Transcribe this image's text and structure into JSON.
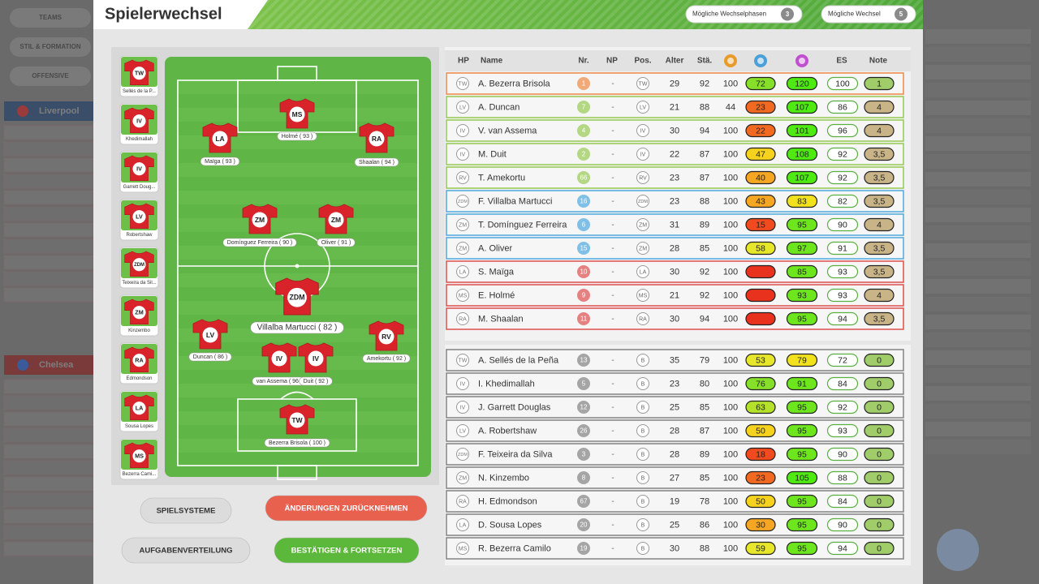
{
  "background": {
    "menu": [
      "TEAMS",
      "STIL & FORMATION",
      "OFFENSIVE"
    ],
    "teams": [
      "Liverpool",
      "Chelsea"
    ]
  },
  "header": {
    "title": "Spielerwechsel",
    "counters": [
      {
        "label": "Mögliche Wechselphasen",
        "value": 3
      },
      {
        "label": "Mögliche Wechsel",
        "value": 5
      }
    ]
  },
  "bench_cards": [
    {
      "pos": "TW",
      "name": "Sellés de la P..."
    },
    {
      "pos": "IV",
      "name": "Khedimallah"
    },
    {
      "pos": "IV",
      "name": "Garrett Doug..."
    },
    {
      "pos": "LV",
      "name": "Robertshaw"
    },
    {
      "pos": "ZDM",
      "name": "Teixeira da Sil..."
    },
    {
      "pos": "ZM",
      "name": "Kinzembo"
    },
    {
      "pos": "RA",
      "name": "Edmondson"
    },
    {
      "pos": "LA",
      "name": "Sousa Lopes"
    },
    {
      "pos": "MS",
      "name": "Bezerra Cami..."
    }
  ],
  "pitch": [
    {
      "pos": "MS",
      "label": "Holmé ( 93 )"
    },
    {
      "pos": "LA",
      "label": "Maïga ( 93 )"
    },
    {
      "pos": "RA",
      "label": "Shaalan ( 94 )"
    },
    {
      "pos": "ZM",
      "label": "Domínguez Ferreira ( 90 )"
    },
    {
      "pos": "ZM",
      "label": "Oliver ( 91 )"
    },
    {
      "pos": "ZDM",
      "label": "Villalba Martucci ( 82 )"
    },
    {
      "pos": "LV",
      "label": "Duncan ( 86 )"
    },
    {
      "pos": "IV",
      "label": "van Assema ( 96 )"
    },
    {
      "pos": "IV",
      "label": "Duit ( 92 )"
    },
    {
      "pos": "RV",
      "label": "Amekortu ( 92 )"
    },
    {
      "pos": "TW",
      "label": "Bezerra Brisola ( 100 )"
    }
  ],
  "buttons": [
    "SPIELSYSTEME",
    "ÄNDERUNGEN ZURÜCKNEHMEN",
    "AUFGABENVERTEILUNG",
    "BESTÄTIGEN & FORTSETZEN"
  ],
  "table": {
    "columns": [
      "HP",
      "Name",
      "Nr.",
      "NP",
      "Pos.",
      "Alter",
      "Stä.",
      "ES",
      "Note"
    ],
    "starters": [
      {
        "hp": "TW",
        "name": "A. Bezerra Brisola",
        "nr": 1,
        "np": "-",
        "pos": "TW",
        "age": 29,
        "sta": 92,
        "cond": 100,
        "fit": 72,
        "mor": 120,
        "es": 100,
        "note": "1",
        "color": "#ee9050"
      },
      {
        "hp": "LV",
        "name": "A. Duncan",
        "nr": 7,
        "np": "-",
        "pos": "LV",
        "age": 21,
        "sta": 88,
        "cond": 44,
        "fit": 23,
        "mor": 107,
        "es": 86,
        "note": "4",
        "color": "#9ccc5c"
      },
      {
        "hp": "IV",
        "name": "V. van Assema",
        "nr": 4,
        "np": "-",
        "pos": "IV",
        "age": 30,
        "sta": 94,
        "cond": 100,
        "fit": 22,
        "mor": 101,
        "es": 96,
        "note": "4",
        "color": "#9ccc5c"
      },
      {
        "hp": "IV",
        "name": "M. Duit",
        "nr": 2,
        "np": "-",
        "pos": "IV",
        "age": 22,
        "sta": 87,
        "cond": 100,
        "fit": 47,
        "mor": 108,
        "es": 92,
        "note": "3,5",
        "color": "#9ccc5c"
      },
      {
        "hp": "RV",
        "name": "T. Amekortu",
        "nr": 66,
        "np": "-",
        "pos": "RV",
        "age": 23,
        "sta": 87,
        "cond": 100,
        "fit": 40,
        "mor": 107,
        "es": 92,
        "note": "3,5",
        "color": "#9ccc5c"
      },
      {
        "hp": "ZDM",
        "name": "F. Villalba Martucci",
        "nr": 16,
        "np": "-",
        "pos": "ZDM",
        "age": 23,
        "sta": 88,
        "cond": 100,
        "fit": 43,
        "mor": 83,
        "es": 82,
        "note": "3,5",
        "color": "#5aaee0"
      },
      {
        "hp": "ZM",
        "name": "T. Domínguez Ferreira",
        "nr": 6,
        "np": "-",
        "pos": "ZM",
        "age": 31,
        "sta": 89,
        "cond": 100,
        "fit": 15,
        "mor": 95,
        "es": 90,
        "note": "4",
        "color": "#5aaee0"
      },
      {
        "hp": "ZM",
        "name": "A. Oliver",
        "nr": 15,
        "np": "-",
        "pos": "ZM",
        "age": 28,
        "sta": 85,
        "cond": 100,
        "fit": 58,
        "mor": 97,
        "es": 91,
        "note": "3,5",
        "color": "#5aaee0"
      },
      {
        "hp": "LA",
        "name": "S. Maïga",
        "nr": 10,
        "np": "-",
        "pos": "LA",
        "age": 30,
        "sta": 92,
        "cond": 100,
        "fit": null,
        "mor": 85,
        "es": 93,
        "note": "3,5",
        "color": "#e05a5a"
      },
      {
        "hp": "MS",
        "name": "E. Holmé",
        "nr": 9,
        "np": "-",
        "pos": "MS",
        "age": 21,
        "sta": 92,
        "cond": 100,
        "fit": null,
        "mor": 93,
        "es": 93,
        "note": "4",
        "color": "#e05a5a"
      },
      {
        "hp": "RA",
        "name": "M. Shaalan",
        "nr": 11,
        "np": "-",
        "pos": "RA",
        "age": 30,
        "sta": 94,
        "cond": 100,
        "fit": null,
        "mor": 95,
        "es": 94,
        "note": "3,5",
        "color": "#e05a5a"
      }
    ],
    "bench": [
      {
        "hp": "TW",
        "name": "A. Sellés de la Peña",
        "nr": 13,
        "np": "-",
        "pos": "B",
        "age": 35,
        "sta": 79,
        "cond": 100,
        "fit": 53,
        "mor": 79,
        "es": 72,
        "note": "0",
        "color": "#8a8a8a"
      },
      {
        "hp": "IV",
        "name": "I. Khedimallah",
        "nr": 5,
        "np": "-",
        "pos": "B",
        "age": 23,
        "sta": 80,
        "cond": 100,
        "fit": 76,
        "mor": 91,
        "es": 84,
        "note": "0",
        "color": "#8a8a8a"
      },
      {
        "hp": "IV",
        "name": "J. Garrett Douglas",
        "nr": 12,
        "np": "-",
        "pos": "B",
        "age": 25,
        "sta": 85,
        "cond": 100,
        "fit": 63,
        "mor": 95,
        "es": 92,
        "note": "0",
        "color": "#8a8a8a"
      },
      {
        "hp": "LV",
        "name": "A. Robertshaw",
        "nr": 26,
        "np": "-",
        "pos": "B",
        "age": 28,
        "sta": 87,
        "cond": 100,
        "fit": 50,
        "mor": 95,
        "es": 93,
        "note": "0",
        "color": "#8a8a8a"
      },
      {
        "hp": "ZDM",
        "name": "F. Teixeira da Silva",
        "nr": 3,
        "np": "-",
        "pos": "B",
        "age": 28,
        "sta": 89,
        "cond": 100,
        "fit": 18,
        "mor": 95,
        "es": 90,
        "note": "0",
        "color": "#8a8a8a"
      },
      {
        "hp": "ZM",
        "name": "N. Kinzembo",
        "nr": 8,
        "np": "-",
        "pos": "B",
        "age": 27,
        "sta": 85,
        "cond": 100,
        "fit": 23,
        "mor": 105,
        "es": 88,
        "note": "0",
        "color": "#8a8a8a"
      },
      {
        "hp": "RA",
        "name": "H. Edmondson",
        "nr": 67,
        "np": "-",
        "pos": "B",
        "age": 19,
        "sta": 78,
        "cond": 100,
        "fit": 50,
        "mor": 95,
        "es": 84,
        "note": "0",
        "color": "#8a8a8a"
      },
      {
        "hp": "LA",
        "name": "D. Sousa Lopes",
        "nr": 20,
        "np": "-",
        "pos": "B",
        "age": 25,
        "sta": 86,
        "cond": 100,
        "fit": 30,
        "mor": 95,
        "es": 90,
        "note": "0",
        "color": "#8a8a8a"
      },
      {
        "hp": "MS",
        "name": "R. Bezerra Camilo",
        "nr": 19,
        "np": "-",
        "pos": "B",
        "age": 30,
        "sta": 88,
        "cond": 100,
        "fit": 59,
        "mor": 95,
        "es": 94,
        "note": "0",
        "color": "#8a8a8a"
      }
    ]
  }
}
